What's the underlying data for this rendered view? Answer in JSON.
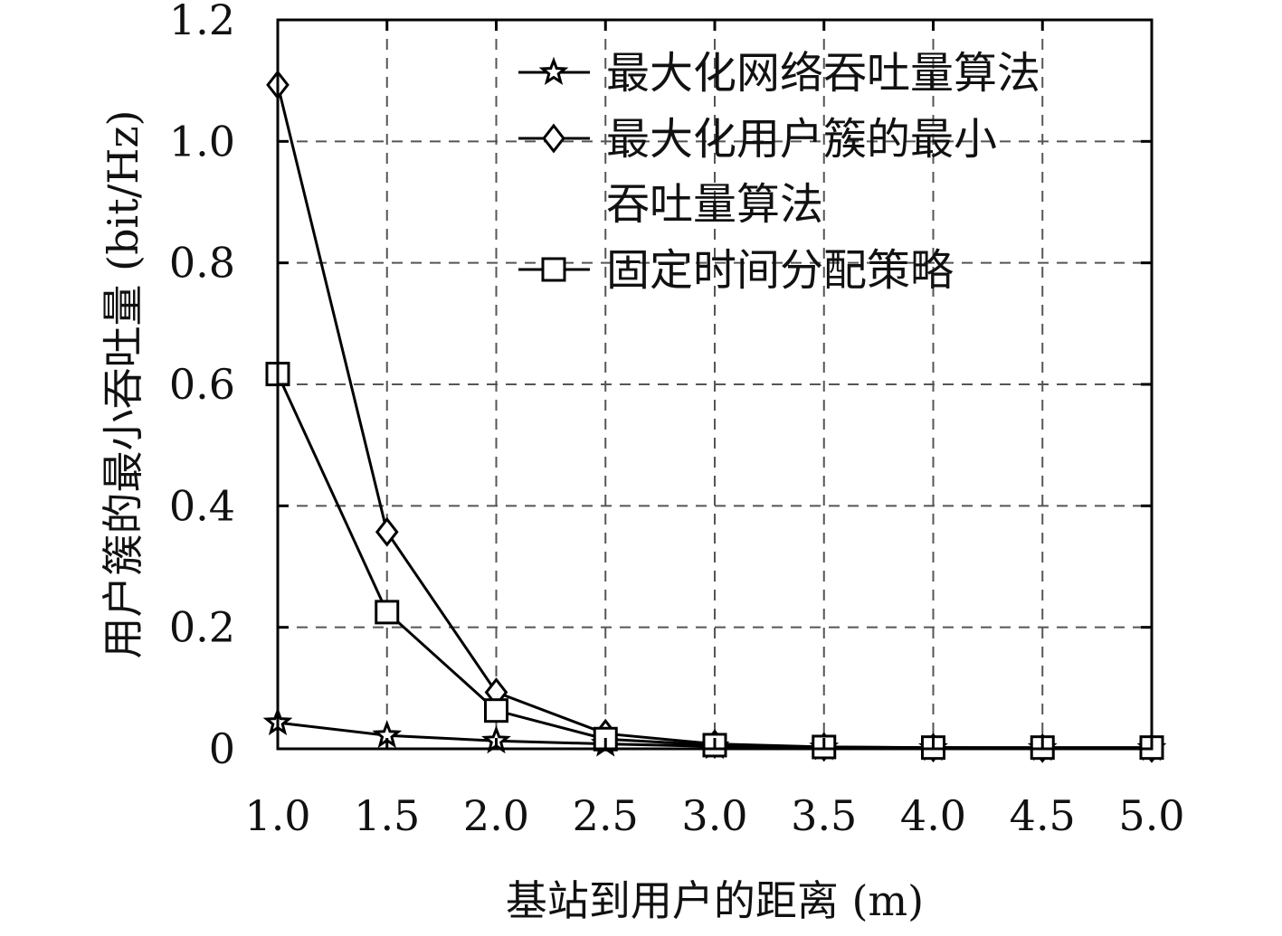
{
  "chart_data": {
    "type": "line",
    "xlabel": "基站到用户的距离 (m)",
    "ylabel": "用户簇的最小吞吐量 (bit/Hz)",
    "x": [
      1.0,
      1.5,
      2.0,
      2.5,
      3.0,
      3.5,
      4.0,
      4.5,
      5.0
    ],
    "x_ticks": [
      "1.0",
      "1.5",
      "2.0",
      "2.5",
      "3.0",
      "3.5",
      "4.0",
      "4.5",
      "5.0"
    ],
    "y_ticks": [
      "0",
      "0.2",
      "0.4",
      "0.6",
      "0.8",
      "1.0",
      "1.2"
    ],
    "xlim": [
      1.0,
      5.0
    ],
    "ylim": [
      0,
      1.2
    ],
    "grid": true,
    "legend_position": "top-right",
    "series": [
      {
        "name": "最大化网络吞吐量算法",
        "legend_lines": [
          "最大化网络吞吐量算法"
        ],
        "marker": "star",
        "values": [
          0.043,
          0.022,
          0.013,
          0.008,
          0.004,
          0.002,
          0.001,
          0.001,
          0.001
        ]
      },
      {
        "name": "最大化用户簇的最小吞吐量算法",
        "legend_lines": [
          "最大化用户簇的最小",
          "吞吐量算法"
        ],
        "marker": "diamond",
        "values": [
          1.093,
          0.357,
          0.093,
          0.025,
          0.008,
          0.003,
          0.002,
          0.001,
          0.001
        ]
      },
      {
        "name": "固定时间分配策略",
        "legend_lines": [
          "固定时间分配策略"
        ],
        "marker": "square",
        "values": [
          0.617,
          0.225,
          0.063,
          0.016,
          0.006,
          0.003,
          0.002,
          0.002,
          0.002
        ]
      }
    ]
  }
}
